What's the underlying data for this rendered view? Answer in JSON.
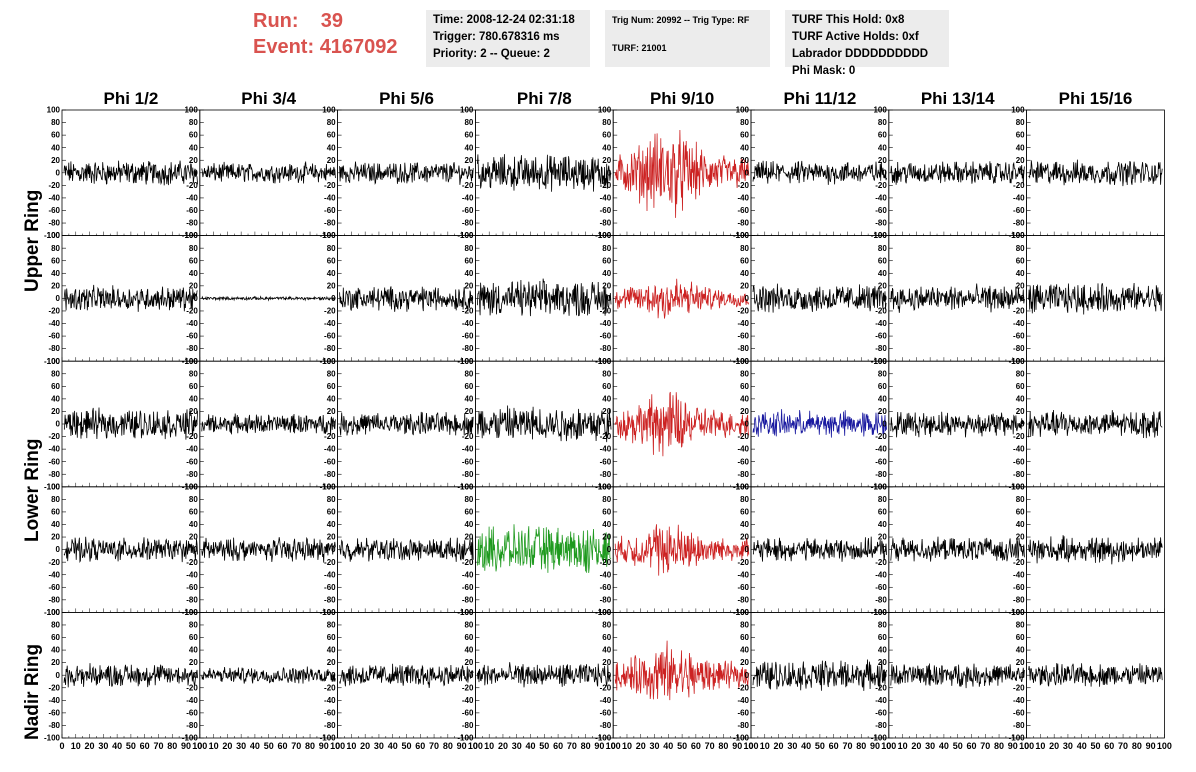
{
  "header": {
    "run_label": "Run:",
    "run_value": "39",
    "event_label": "Event:",
    "event_value": "4167092",
    "time_line": "Time: 2008-12-24 02:31:18",
    "trigger_line": "Trigger: 780.678316 ms",
    "priority_line": "Priority: 2 -- Queue: 2",
    "trig_num_line": "Trig Num: 20992 -- Trig Type: RF",
    "turf_line": "TURF: 21001",
    "turf_hold_line": "TURF This Hold: 0x8",
    "turf_active_line": "TURF Active Holds: 0xf",
    "labrador_line": "Labrador DDDDDDDDDD",
    "phi_mask_line": "Phi Mask: 0"
  },
  "rings": {
    "upper": "Upper Ring",
    "lower": "Lower Ring",
    "nadir": "Nadir Ring"
  },
  "chart_data": {
    "type": "line",
    "columns": [
      "Phi 1/2",
      "Phi 3/4",
      "Phi 5/6",
      "Phi 7/8",
      "Phi 9/10",
      "Phi 11/12",
      "Phi 13/14",
      "Phi 15/16"
    ],
    "rows": 5,
    "xlim": [
      0,
      100
    ],
    "ylim": [
      -100,
      100
    ],
    "y_ticks": [
      -100,
      -80,
      -60,
      -40,
      -20,
      0,
      20,
      40,
      60,
      80,
      100
    ],
    "x_ticks": [
      0,
      10,
      20,
      30,
      40,
      50,
      60,
      70,
      80,
      90,
      100
    ],
    "colors": {
      "default": "#000000",
      "red": "#cc2222",
      "blue": "#1a1aa0",
      "green": "#1f9a1f"
    },
    "traces": [
      [
        "black",
        "black",
        "black",
        "black",
        "red",
        "black",
        "black",
        "black"
      ],
      [
        "black",
        "black",
        "black",
        "black",
        "red",
        "black",
        "black",
        "black"
      ],
      [
        "black",
        "black",
        "black",
        "black",
        "red",
        "blue",
        "black",
        "black"
      ],
      [
        "black",
        "black",
        "black",
        "green",
        "red",
        "black",
        "black",
        "black"
      ],
      [
        "black",
        "black",
        "black",
        "black",
        "red",
        "black",
        "black",
        "black"
      ]
    ],
    "amplitudes": [
      [
        15,
        12,
        13,
        22,
        38,
        14,
        14,
        15
      ],
      [
        15,
        2,
        15,
        22,
        20,
        17,
        16,
        18
      ],
      [
        18,
        12,
        14,
        22,
        28,
        16,
        15,
        16
      ],
      [
        14,
        14,
        14,
        28,
        24,
        14,
        14,
        16
      ],
      [
        14,
        10,
        14,
        14,
        28,
        18,
        14,
        14
      ]
    ]
  }
}
